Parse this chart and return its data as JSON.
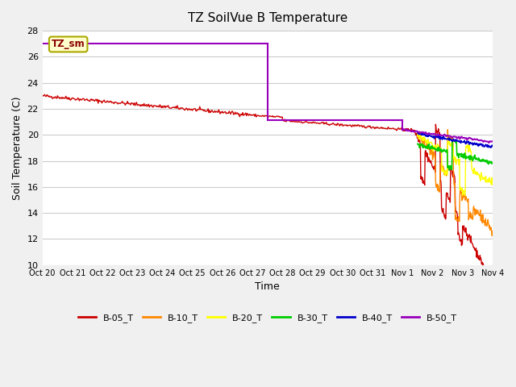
{
  "title": "TZ SoilVue B Temperature",
  "xlabel": "Time",
  "ylabel": "Soil Temperature (C)",
  "ylim": [
    10,
    28
  ],
  "yticks": [
    10,
    12,
    14,
    16,
    18,
    20,
    22,
    24,
    26,
    28
  ],
  "xtick_labels": [
    "Oct 20",
    "Oct 21",
    "Oct 22",
    "Oct 23",
    "Oct 24",
    "Oct 25",
    "Oct 26",
    "Oct 27",
    "Oct 28",
    "Oct 29",
    "Oct 30",
    "Oct 31",
    "Nov 1",
    "Nov 2",
    "Nov 3",
    "Nov 4"
  ],
  "annotation_label": "TZ_sm",
  "fig_bg": "#f0f0f0",
  "plot_bg": "#ffffff",
  "grid_color": "#cccccc",
  "legend_entries": [
    "B-05_T",
    "B-10_T",
    "B-20_T",
    "B-30_T",
    "B-40_T",
    "B-50_T"
  ],
  "series_colors": {
    "B-05_T": "#cc0000",
    "B-10_T": "#ff8800",
    "B-20_T": "#ffff00",
    "B-30_T": "#00cc00",
    "B-40_T": "#0000cc",
    "B-50_T": "#9900bb"
  }
}
